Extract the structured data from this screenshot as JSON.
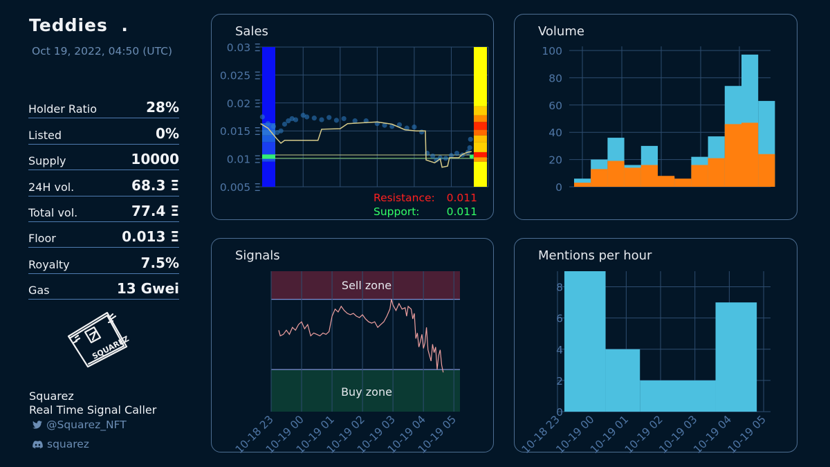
{
  "collection": {
    "name": "Teddies",
    "name_suffix": ".",
    "date": "Oct 19, 2022, 04:50 (UTC)"
  },
  "stats": [
    {
      "label": "Holder Ratio",
      "value": "28%"
    },
    {
      "label": "Listed",
      "value": "0%"
    },
    {
      "label": "Supply",
      "value": "10000"
    },
    {
      "label": "24H vol.",
      "value": "68.3 Ξ"
    },
    {
      "label": "Total vol.",
      "value": "77.4 Ξ"
    },
    {
      "label": "Floor",
      "value": "0.013 Ξ"
    },
    {
      "label": "Royalty",
      "value": "7.5%"
    },
    {
      "label": "Gas",
      "value": "13 Gwei"
    }
  ],
  "brand": {
    "logo_text": "SQUAREZ",
    "name": "Squarez",
    "tagline": "Real Time Signal Caller",
    "twitter": "@Squarez_NFT",
    "discord": "squarez",
    "twitter_icon": "twitter-icon",
    "discord_icon": "discord-icon"
  },
  "colors": {
    "background": "#031627",
    "panel_border": "#4d6e92",
    "volume_total": "#4cc0e0",
    "volume_part": "#ff7f0e",
    "resistance": "#ff2020",
    "support": "#33ff66",
    "mentions": "#4cc0e0",
    "signal_line": "#f0a0a0"
  },
  "chart_data": [
    {
      "id": "sales",
      "type": "scatter",
      "title": "Sales",
      "y_ticks": [
        "0.005 Ξ",
        "0.01 Ξ",
        "0.015 Ξ",
        "0.02 Ξ",
        "0.025 Ξ",
        "0.03 Ξ"
      ],
      "ylim": [
        0.005,
        0.03
      ],
      "x_range_hours": [
        -1.2,
        5.0
      ],
      "resistance": {
        "label": "Resistance:",
        "value": "0.011"
      },
      "support": {
        "label": "Support:",
        "value": "0.011"
      },
      "floor_line": [
        [
          -1.15,
          0.0163
        ],
        [
          -0.95,
          0.0155
        ],
        [
          -0.7,
          0.0135
        ],
        [
          -0.6,
          0.0128
        ],
        [
          -0.5,
          0.0133
        ],
        [
          0.0,
          0.0133
        ],
        [
          0.4,
          0.0133
        ],
        [
          0.5,
          0.0153
        ],
        [
          1.0,
          0.0154
        ],
        [
          1.2,
          0.0163
        ],
        [
          2.0,
          0.0166
        ],
        [
          2.4,
          0.0162
        ],
        [
          2.75,
          0.0152
        ],
        [
          3.05,
          0.015
        ],
        [
          3.3,
          0.015
        ],
        [
          3.32,
          0.0098
        ],
        [
          3.55,
          0.0093
        ],
        [
          3.7,
          0.01
        ],
        [
          3.75,
          0.0085
        ],
        [
          3.9,
          0.0087
        ],
        [
          3.95,
          0.0102
        ],
        [
          4.2,
          0.0102
        ],
        [
          4.3,
          0.0108
        ],
        [
          4.45,
          0.0112
        ],
        [
          4.55,
          0.0113
        ]
      ],
      "sales_points": [
        [
          -1.1,
          0.0175
        ],
        [
          -0.95,
          0.0163
        ],
        [
          -0.8,
          0.0158
        ],
        [
          -0.7,
          0.0147
        ],
        [
          -0.6,
          0.015
        ],
        [
          -0.5,
          0.0162
        ],
        [
          -0.4,
          0.0168
        ],
        [
          -0.3,
          0.0172
        ],
        [
          -0.2,
          0.017
        ],
        [
          0.0,
          0.0178
        ],
        [
          0.1,
          0.0175
        ],
        [
          0.3,
          0.0173
        ],
        [
          0.5,
          0.017
        ],
        [
          0.7,
          0.0174
        ],
        [
          0.9,
          0.0169
        ],
        [
          1.1,
          0.0172
        ],
        [
          1.4,
          0.0168
        ],
        [
          1.7,
          0.0168
        ],
        [
          2.0,
          0.0163
        ],
        [
          2.2,
          0.016
        ],
        [
          2.4,
          0.0158
        ],
        [
          2.6,
          0.0161
        ],
        [
          2.8,
          0.0155
        ],
        [
          3.0,
          0.0157
        ],
        [
          3.2,
          0.0148
        ],
        [
          3.35,
          0.011
        ],
        [
          3.5,
          0.0105
        ],
        [
          3.6,
          0.0098
        ],
        [
          3.7,
          0.0102
        ],
        [
          3.85,
          0.0101
        ],
        [
          4.0,
          0.0106
        ],
        [
          4.15,
          0.011
        ],
        [
          4.3,
          0.0107
        ],
        [
          4.45,
          0.0112
        ],
        [
          4.5,
          0.012
        ],
        [
          4.52,
          0.0135
        ]
      ],
      "left_histogram": [
        {
          "from": 0.005,
          "to": 0.0095,
          "color": "#0a10f5"
        },
        {
          "from": 0.0095,
          "to": 0.01,
          "color": "#1b4ce8"
        },
        {
          "from": 0.01,
          "to": 0.0108,
          "color": "#33ee77"
        },
        {
          "from": 0.0108,
          "to": 0.013,
          "color": "#1a3ef0"
        },
        {
          "from": 0.013,
          "to": 0.0142,
          "color": "#1c5ee0"
        },
        {
          "from": 0.0142,
          "to": 0.0152,
          "color": "#2a74d8"
        },
        {
          "from": 0.0152,
          "to": 0.0164,
          "color": "#1c5ae2"
        },
        {
          "from": 0.0164,
          "to": 0.03,
          "color": "#0a10f5"
        }
      ],
      "right_histogram": [
        {
          "from": 0.005,
          "to": 0.0095,
          "color": "#ffff00"
        },
        {
          "from": 0.0095,
          "to": 0.0103,
          "color": "#ff9a00"
        },
        {
          "from": 0.0103,
          "to": 0.0112,
          "color": "#ff1a00"
        },
        {
          "from": 0.0112,
          "to": 0.013,
          "color": "#ffd000"
        },
        {
          "from": 0.013,
          "to": 0.0142,
          "color": "#ffc000"
        },
        {
          "from": 0.0142,
          "to": 0.0152,
          "color": "#ff6a00"
        },
        {
          "from": 0.0152,
          "to": 0.0166,
          "color": "#ff2a00"
        },
        {
          "from": 0.0166,
          "to": 0.0178,
          "color": "#ff8a00"
        },
        {
          "from": 0.0178,
          "to": 0.0194,
          "color": "#ffcc00"
        },
        {
          "from": 0.0194,
          "to": 0.03,
          "color": "#ffff00"
        }
      ]
    },
    {
      "id": "volume",
      "type": "bar",
      "title": "Volume",
      "ylim": [
        0,
        100
      ],
      "y_ticks": [
        "0",
        "20",
        "40",
        "60",
        "80",
        "100"
      ],
      "series": [
        {
          "values": [
            6,
            20,
            36,
            16,
            30,
            7,
            5,
            22,
            37,
            74,
            97,
            63
          ]
        },
        {
          "values": [
            3,
            13,
            19,
            14,
            16,
            8,
            6,
            16,
            21,
            46,
            47,
            24
          ]
        }
      ]
    },
    {
      "id": "signals",
      "type": "line",
      "title": "Signals",
      "sell_zone_label": "Sell zone",
      "buy_zone_label": "Buy zone",
      "ylim": [
        0,
        100
      ],
      "sell_zone": [
        80,
        100
      ],
      "buy_zone": [
        0,
        30
      ],
      "x_ticks": [
        "10-18 23",
        "10-19 00",
        "10-19 01",
        "10-19 02",
        "10-19 03",
        "10-19 04",
        "10-19 05"
      ],
      "x_range_hours": [
        -1.0,
        5.2
      ],
      "values": [
        [
          -0.75,
          58
        ],
        [
          -0.7,
          54
        ],
        [
          -0.6,
          55
        ],
        [
          -0.5,
          58
        ],
        [
          -0.4,
          55
        ],
        [
          -0.3,
          60
        ],
        [
          -0.2,
          58
        ],
        [
          -0.1,
          62
        ],
        [
          0.0,
          64
        ],
        [
          0.1,
          59
        ],
        [
          0.2,
          62
        ],
        [
          0.3,
          54
        ],
        [
          0.4,
          56
        ],
        [
          0.5,
          55
        ],
        [
          0.6,
          54
        ],
        [
          0.7,
          56
        ],
        [
          0.8,
          55
        ],
        [
          0.9,
          57
        ],
        [
          1.0,
          68
        ],
        [
          1.1,
          73
        ],
        [
          1.2,
          71
        ],
        [
          1.3,
          75
        ],
        [
          1.4,
          72
        ],
        [
          1.5,
          70
        ],
        [
          1.6,
          69
        ],
        [
          1.7,
          70
        ],
        [
          1.8,
          68
        ],
        [
          1.9,
          67
        ],
        [
          2.0,
          69
        ],
        [
          2.1,
          66
        ],
        [
          2.2,
          64
        ],
        [
          2.3,
          63
        ],
        [
          2.4,
          64
        ],
        [
          2.5,
          60
        ],
        [
          2.6,
          62
        ],
        [
          2.7,
          64
        ],
        [
          2.8,
          68
        ],
        [
          2.9,
          73
        ],
        [
          2.95,
          80
        ],
        [
          3.0,
          76
        ],
        [
          3.1,
          72
        ],
        [
          3.2,
          77
        ],
        [
          3.3,
          73
        ],
        [
          3.4,
          74
        ],
        [
          3.45,
          68
        ],
        [
          3.5,
          75
        ],
        [
          3.6,
          73
        ],
        [
          3.65,
          66
        ],
        [
          3.7,
          70
        ],
        [
          3.75,
          52
        ],
        [
          3.8,
          56
        ],
        [
          3.85,
          46
        ],
        [
          3.9,
          50
        ],
        [
          3.95,
          55
        ],
        [
          4.0,
          45
        ],
        [
          4.05,
          49
        ],
        [
          4.1,
          60
        ],
        [
          4.15,
          44
        ],
        [
          4.2,
          40
        ],
        [
          4.25,
          36
        ],
        [
          4.3,
          48
        ],
        [
          4.35,
          42
        ],
        [
          4.4,
          46
        ],
        [
          4.45,
          30
        ],
        [
          4.5,
          40
        ],
        [
          4.55,
          44
        ],
        [
          4.6,
          33
        ],
        [
          4.65,
          28
        ]
      ]
    },
    {
      "id": "mentions",
      "type": "bar",
      "title": "Mentions per hour",
      "ylim": [
        0,
        9
      ],
      "y_ticks": [
        "0",
        "2",
        "4",
        "6",
        "8"
      ],
      "x_ticks": [
        "10-18 23",
        "10-19 00",
        "10-19 01",
        "10-19 02",
        "10-19 03",
        "10-19 04",
        "10-19 05"
      ],
      "x_range_hours": [
        -1.0,
        5.2
      ],
      "bars": [
        [
          -0.8,
          0.4,
          9
        ],
        [
          0.4,
          1.4,
          4
        ],
        [
          1.4,
          3.6,
          2
        ],
        [
          3.6,
          4.8,
          7
        ]
      ]
    }
  ]
}
